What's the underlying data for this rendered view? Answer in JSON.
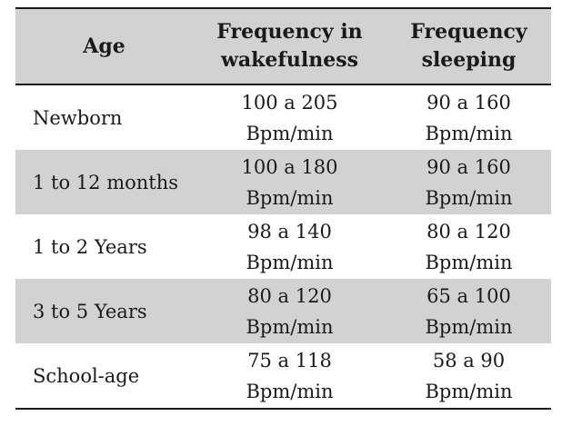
{
  "table": {
    "headers": {
      "age": "Age",
      "wake_line1": "Frequency in",
      "wake_line2": "wakefulness",
      "sleep_line1": "Frequency",
      "sleep_line2": "sleeping"
    },
    "rows": [
      {
        "age": "Newborn",
        "wake": "100 a 205",
        "wake_unit": "Bpm/min",
        "sleep": "90 a 160",
        "sleep_unit": "Bpm/min"
      },
      {
        "age": "1 to 12 months",
        "wake": "100 a 180",
        "wake_unit": "Bpm/min",
        "sleep": "90 a 160",
        "sleep_unit": "Bpm/min"
      },
      {
        "age": "1 to 2 Years",
        "wake": "98 a 140",
        "wake_unit": "Bpm/min",
        "sleep": "80 a 120",
        "sleep_unit": "Bpm/min"
      },
      {
        "age": "3 to 5 Years",
        "wake": "80 a 120",
        "wake_unit": "Bpm/min",
        "sleep": "65 a 100",
        "sleep_unit": "Bpm/min"
      },
      {
        "age": "School-age",
        "wake": "75 a 118",
        "wake_unit": "Bpm/min",
        "sleep": "58 a 90",
        "sleep_unit": "Bpm/min"
      }
    ]
  },
  "colors": {
    "shade": "#d2d2d2",
    "rule": "#1a1a1a"
  }
}
